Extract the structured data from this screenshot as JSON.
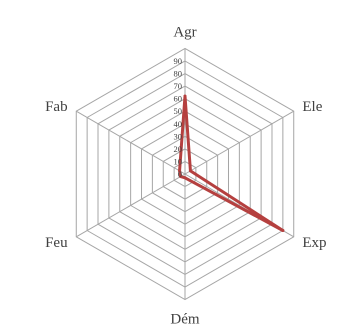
{
  "chart_data": {
    "type": "radar",
    "axes": [
      "Agr",
      "Ele",
      "Exp",
      "Dém",
      "Feu",
      "Fab"
    ],
    "ticks": [
      "0",
      "10",
      "20",
      "30",
      "40",
      "50",
      "60",
      "70",
      "80",
      "90"
    ],
    "rlim": [
      0,
      90
    ],
    "grid": true,
    "series": [
      {
        "values": [
          62,
          5,
          90,
          3,
          4,
          5
        ],
        "color": "#b5403f"
      }
    ]
  }
}
